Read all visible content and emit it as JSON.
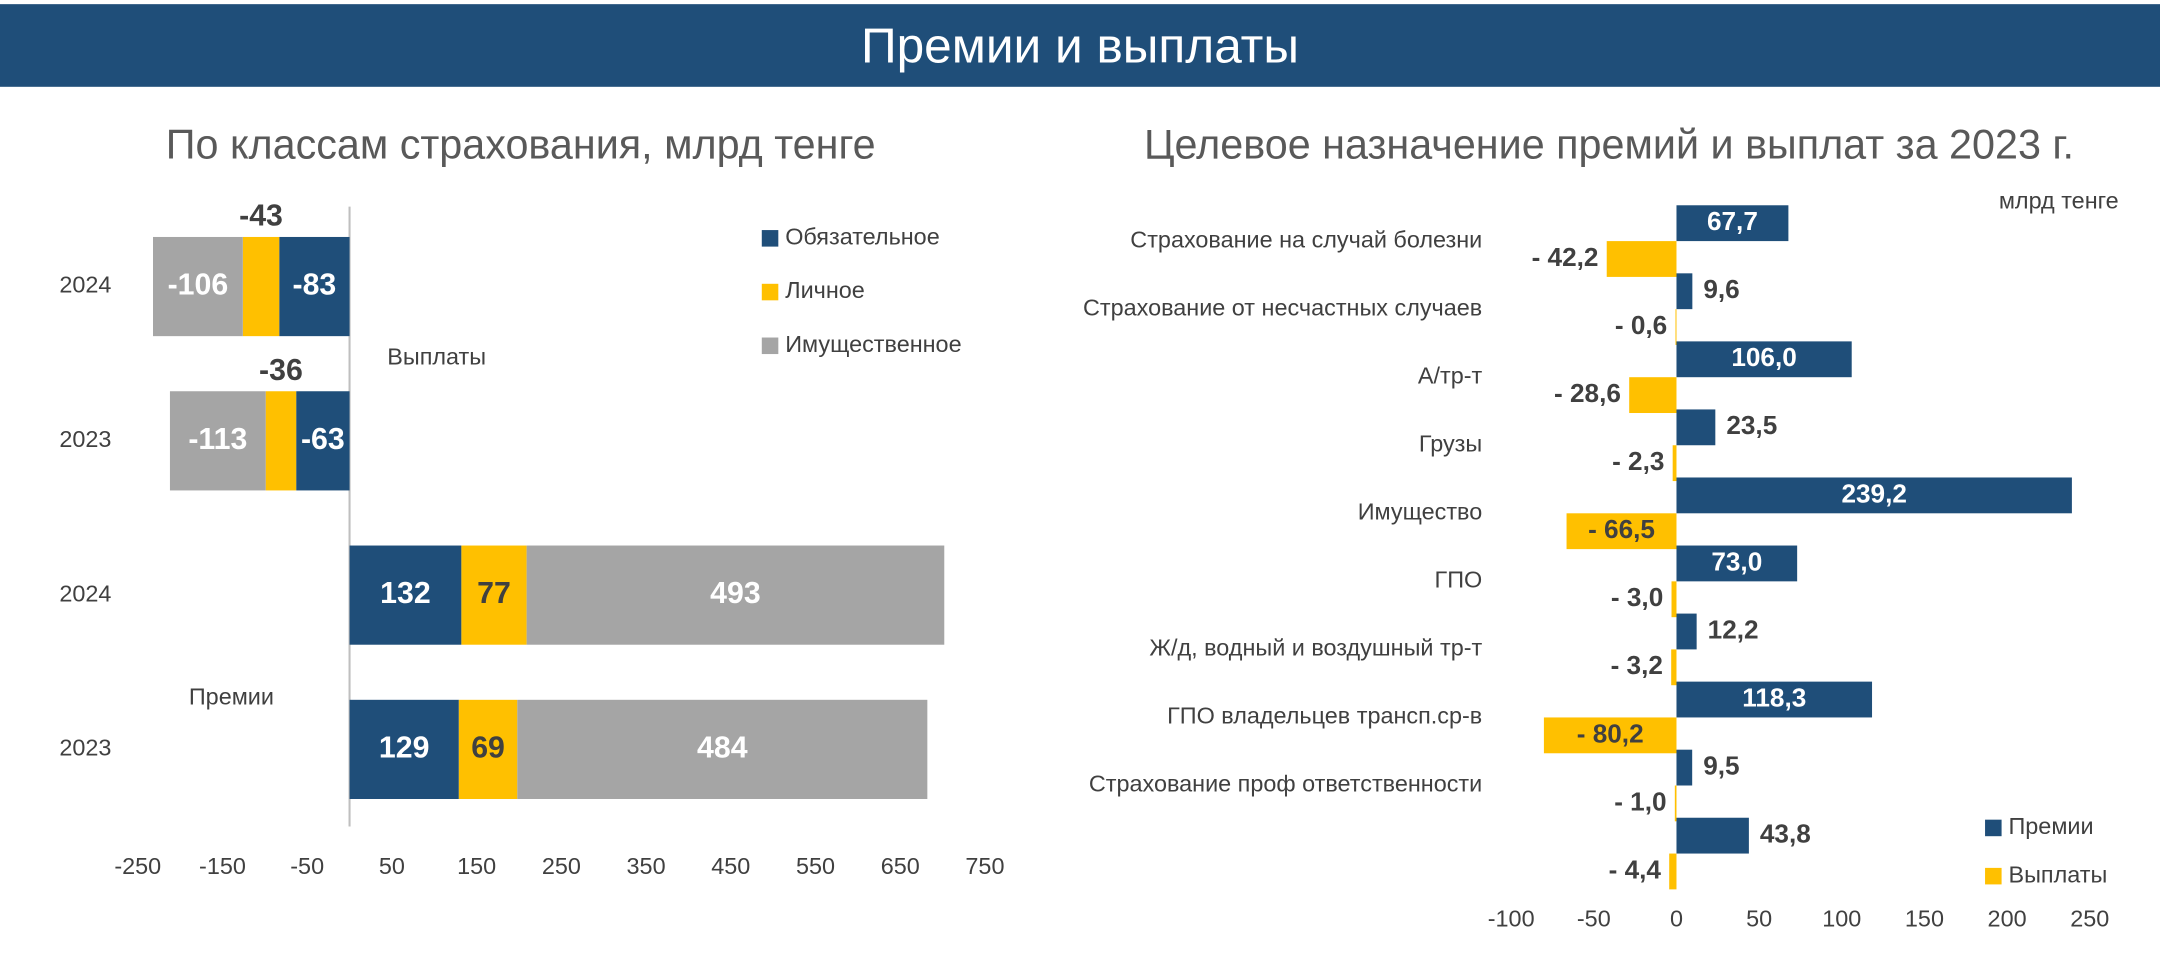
{
  "header": "Премии и выплаты",
  "chart_data": [
    {
      "type": "bar",
      "orientation": "horizontal",
      "stacked": true,
      "title": "По классам страхования, млрд тенге",
      "annotations": [
        "Выплаты",
        "Премии"
      ],
      "categories": [
        "2024",
        "2023",
        "2024",
        "2023"
      ],
      "series": [
        {
          "name": "Обязательное",
          "color": "#1f4e79",
          "values": [
            -83,
            -63,
            132,
            129
          ]
        },
        {
          "name": "Личное",
          "color": "#ffc000",
          "values": [
            -43,
            -36,
            77,
            69
          ]
        },
        {
          "name": "Имущественное",
          "color": "#a5a5a5",
          "values": [
            -106,
            -113,
            493,
            484
          ]
        }
      ],
      "xlim": [
        -250,
        750
      ],
      "xticks": [
        -250,
        -150,
        -50,
        50,
        150,
        250,
        350,
        450,
        550,
        650,
        750
      ],
      "legend": "top-right"
    },
    {
      "type": "bar",
      "orientation": "horizontal",
      "stacked": false,
      "title": "Целевое назначение премий и выплат за 2023 г.",
      "unit_label": "млрд тенге",
      "categories": [
        "Страхование на случай болезни",
        "Страхование от несчастных случаев",
        "А/тр-т",
        "Грузы",
        "Имущество",
        "ГПО",
        "Ж/д, водный и воздушный тр-т",
        "ГПО владельцев трансп.ср-в",
        "Страхование проф ответственности",
        null
      ],
      "series": [
        {
          "name": "Премии",
          "color": "#1f4e79",
          "values": [
            67.7,
            9.6,
            106.0,
            23.5,
            239.2,
            73.0,
            12.2,
            118.3,
            9.5,
            43.8
          ],
          "value_labels": [
            "67,7",
            "9,6",
            "106,0",
            "23,5",
            "239,2",
            "73,0",
            "12,2",
            "118,3",
            "9,5",
            "43,8"
          ]
        },
        {
          "name": "Выплаты",
          "color": "#ffc000",
          "values": [
            -42.2,
            -0.6,
            -28.6,
            -2.3,
            -66.5,
            -3.0,
            -3.2,
            -80.2,
            -1.0,
            -4.4
          ],
          "value_labels": [
            "- 42,2",
            "- 0,6",
            "- 28,6",
            "- 2,3",
            "- 66,5",
            "- 3,0",
            "- 3,2",
            "- 80,2",
            "- 1,0",
            "- 4,4"
          ]
        }
      ],
      "xlim": [
        -100,
        250
      ],
      "xticks": [
        -100,
        -50,
        0,
        50,
        100,
        150,
        200,
        250
      ],
      "legend": "bottom-right"
    }
  ]
}
